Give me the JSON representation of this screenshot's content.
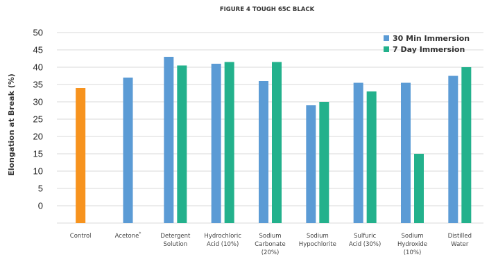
{
  "chart_data": {
    "type": "bar",
    "title": "FIGURE 4 TOUGH 65C BLACK",
    "ylabel": "Elongation at Break (%)",
    "xlabel": "",
    "ylim": [
      -5,
      50
    ],
    "yticks": [
      0,
      5,
      10,
      15,
      20,
      25,
      30,
      35,
      40,
      45,
      50
    ],
    "grid": true,
    "legend_position": "top-right",
    "colors": {
      "control": "#f7931e",
      "series_0": "#5b9bd5",
      "series_1": "#23b18c"
    },
    "categories": [
      {
        "lines": [
          "Control"
        ]
      },
      {
        "lines": [
          "Acetone"
        ],
        "superscript": "*"
      },
      {
        "lines": [
          "Detergent",
          "Solution"
        ]
      },
      {
        "lines": [
          "Hydrochloric",
          "Acid (10%)"
        ]
      },
      {
        "lines": [
          "Sodium",
          "Carbonate",
          "(20%)"
        ]
      },
      {
        "lines": [
          "Sodium",
          "Hypochlorite"
        ]
      },
      {
        "lines": [
          "Sulfuric",
          "Acid (30%)"
        ]
      },
      {
        "lines": [
          "Sodium",
          "Hydroxide",
          "(10%)"
        ]
      },
      {
        "lines": [
          "Distilled",
          "Water"
        ]
      }
    ],
    "control_value": 34,
    "series": [
      {
        "name": "30 Min Immersion",
        "values": [
          null,
          37,
          43,
          41,
          36,
          29,
          35.5,
          35.5,
          37.5
        ]
      },
      {
        "name": "7 Day Immersion",
        "values": [
          null,
          null,
          40.5,
          41.5,
          41.5,
          30,
          33,
          15,
          40
        ]
      }
    ]
  }
}
